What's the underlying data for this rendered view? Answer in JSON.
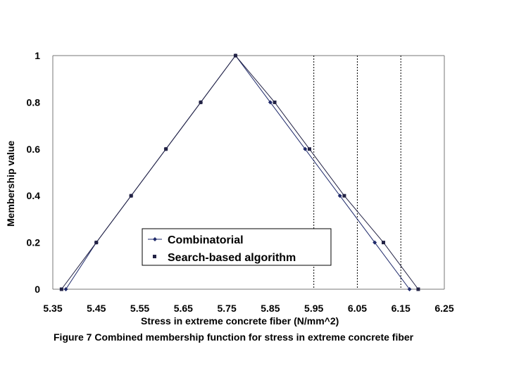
{
  "chart_data": {
    "type": "line",
    "xlabel": "Stress in extreme concrete fiber (N/mm^2)",
    "ylabel": "Membership value",
    "caption": "Figure 7 Combined membership function for stress in extreme concrete fiber",
    "xlim": [
      5.35,
      6.25
    ],
    "ylim": [
      0,
      1
    ],
    "x_ticks": [
      "5.35",
      "5.45",
      "5.55",
      "5.65",
      "5.75",
      "5.85",
      "5.95",
      "6.05",
      "6.15",
      "6.25"
    ],
    "y_ticks": [
      "0",
      "0.2",
      "0.4",
      "0.6",
      "0.8",
      "1"
    ],
    "vertical_reference_lines": [
      5.95,
      6.05,
      6.15
    ],
    "legend_placement": "bottom-center",
    "series": [
      {
        "name": "Combinatorial",
        "marker": "diamond",
        "color": "#1f2a6b",
        "x": [
          5.38,
          5.45,
          5.53,
          5.61,
          5.69,
          5.77,
          5.85,
          5.93,
          6.01,
          6.09,
          6.17
        ],
        "y": [
          0,
          0.2,
          0.4,
          0.6,
          0.8,
          1.0,
          0.8,
          0.6,
          0.4,
          0.2,
          0
        ]
      },
      {
        "name": "Search-based algorithm",
        "marker": "square",
        "color": "#222244",
        "x": [
          5.37,
          5.45,
          5.53,
          5.61,
          5.69,
          5.77,
          5.86,
          5.94,
          6.02,
          6.11,
          6.19
        ],
        "y": [
          0,
          0.2,
          0.4,
          0.6,
          0.8,
          1.0,
          0.8,
          0.6,
          0.4,
          0.2,
          0
        ]
      }
    ]
  }
}
